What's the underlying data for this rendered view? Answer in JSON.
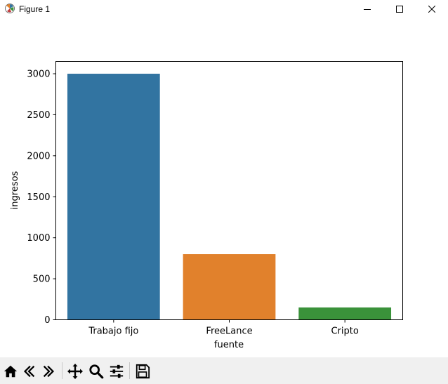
{
  "window": {
    "title": "Figure 1",
    "controls": [
      "minimize",
      "maximize",
      "close"
    ]
  },
  "chart_data": {
    "type": "bar",
    "categories": [
      "Trabajo fijo",
      "FreeLance",
      "Cripto"
    ],
    "values": [
      3000,
      800,
      150
    ],
    "colors": [
      "#3274a1",
      "#e1812c",
      "#3a923a"
    ],
    "xlabel": "fuente",
    "ylabel": "ingresos",
    "ylim": [
      0,
      3150
    ],
    "yticks": [
      0,
      500,
      1000,
      1500,
      2000,
      2500,
      3000
    ],
    "grid": false
  },
  "toolbar": {
    "buttons": [
      "home-icon",
      "back-icon",
      "forward-icon",
      "pan-icon",
      "zoom-icon",
      "configure-subplots-icon",
      "save-icon"
    ]
  }
}
